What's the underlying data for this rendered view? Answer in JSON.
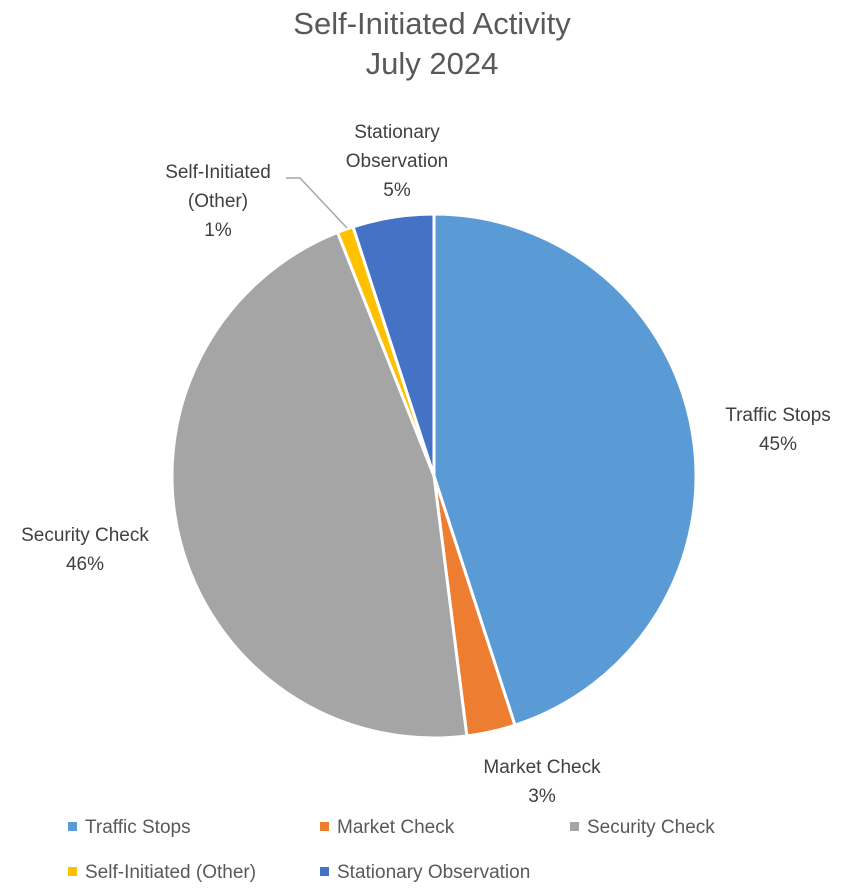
{
  "chart_data": {
    "type": "pie",
    "title": [
      "Self-Initiated Activity",
      "July 2024"
    ],
    "legend_position": "bottom",
    "slices": [
      {
        "name": "Traffic Stops",
        "value": 45,
        "label": [
          "Traffic Stops",
          "45%"
        ],
        "color": "#5B9BD5"
      },
      {
        "name": "Market Check",
        "value": 3,
        "label": [
          "Market Check",
          "3%"
        ],
        "color": "#ED7D31"
      },
      {
        "name": "Security Check",
        "value": 46,
        "label": [
          "Security Check",
          "46%"
        ],
        "color": "#A5A5A5"
      },
      {
        "name": "Self-Initiated (Other)",
        "value": 1,
        "label": [
          "Self-Initiated",
          "(Other)",
          "1%"
        ],
        "color": "#FFC000"
      },
      {
        "name": "Stationary Observation",
        "value": 5,
        "label": [
          "Stationary",
          "Observation",
          "5%"
        ],
        "color": "#4472C4"
      }
    ]
  }
}
